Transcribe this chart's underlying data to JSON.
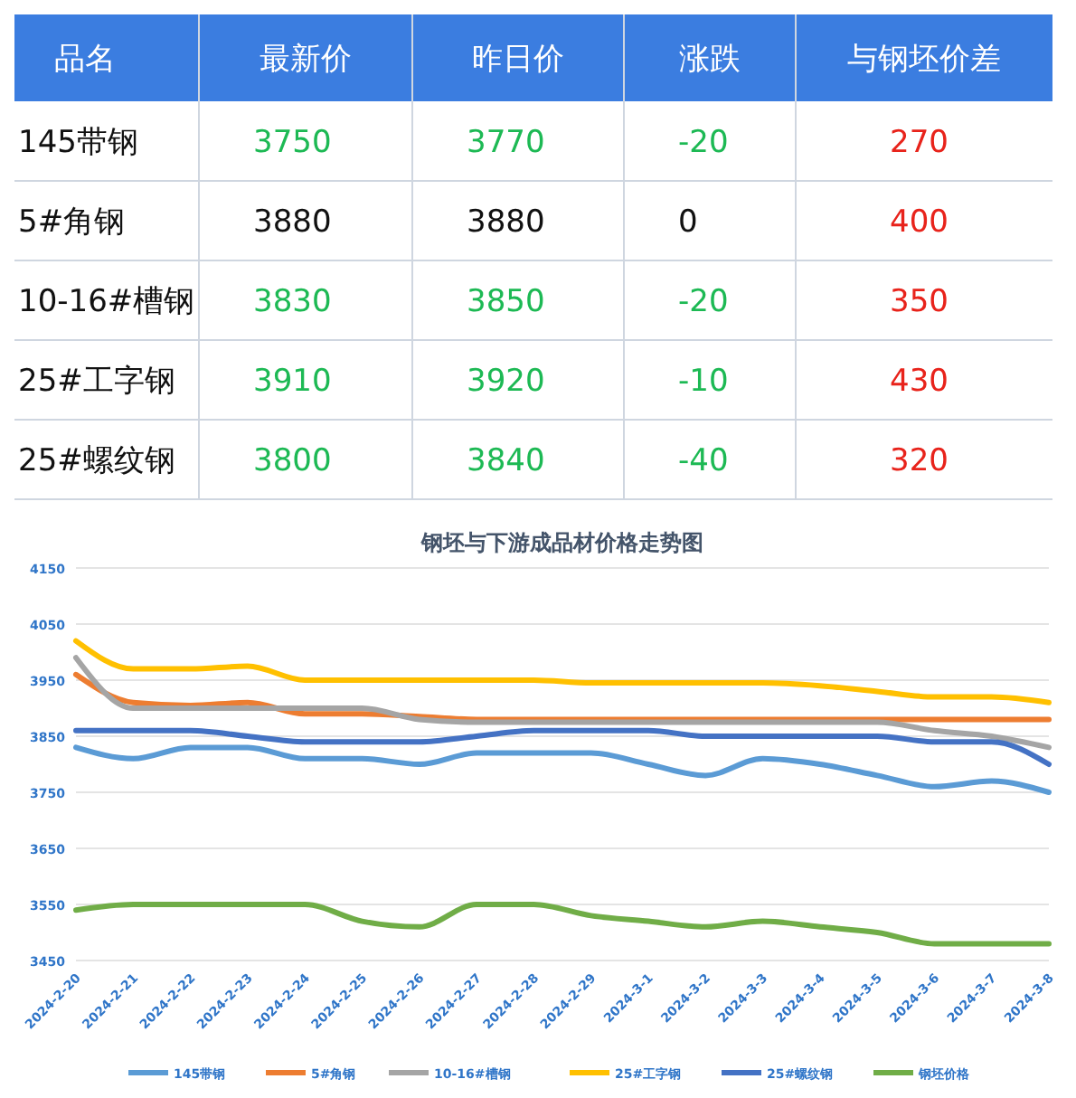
{
  "chart_data": [
    {
      "type": "other",
      "color": "#3b7de0",
      "categories": [
        "品名",
        "最新价",
        "昨日价",
        "涨跌",
        "与钢坯价差"
      ],
      "cell_labels": [
        [
          "145带钢",
          "3750",
          "3770",
          "-20",
          "270"
        ],
        [
          "5#角钢",
          "3880",
          "3880",
          "0",
          "400"
        ],
        [
          "10-16#槽钢",
          "3830",
          "3850",
          "-20",
          "350"
        ],
        [
          "25#工字钢",
          "3910",
          "3920",
          "-10",
          "430"
        ],
        [
          "25#螺纹钢",
          "3800",
          "3840",
          "-40",
          "320"
        ]
      ],
      "colors": [
        [
          "#111111",
          "#1db954",
          "#1db954",
          "#1db954",
          "#e8231b"
        ],
        [
          "#111111",
          "#111111",
          "#111111",
          "#111111",
          "#e8231b"
        ],
        [
          "#111111",
          "#1db954",
          "#1db954",
          "#1db954",
          "#e8231b"
        ],
        [
          "#111111",
          "#1db954",
          "#1db954",
          "#1db954",
          "#e8231b"
        ],
        [
          "#111111",
          "#1db954",
          "#1db954",
          "#1db954",
          "#e8231b"
        ]
      ]
    },
    {
      "type": "line",
      "title": "钢坯与下游成品材价格走势图",
      "categories": [
        "2024-2-20",
        "2024-2-21",
        "2024-2-22",
        "2024-2-23",
        "2024-2-24",
        "2024-2-25",
        "2024-2-26",
        "2024-2-27",
        "2024-2-28",
        "2024-2-29",
        "2024-3-1",
        "2024-3-2",
        "2024-3-3",
        "2024-3-4",
        "2024-3-5",
        "2024-3-6",
        "2024-3-7",
        "2024-3-8"
      ],
      "ylim": [
        3450,
        4150
      ],
      "yticks": [
        3450,
        3550,
        3650,
        3750,
        3850,
        3950,
        4050,
        4150
      ],
      "grid": "y",
      "legend": "bottom",
      "marker": "none",
      "series": [
        {
          "name": "145带钢",
          "color": "#5b9bd5",
          "values": [
            3830,
            3810,
            3830,
            3830,
            3810,
            3810,
            3800,
            3820,
            3820,
            3820,
            3800,
            3780,
            3810,
            3800,
            3780,
            3760,
            3770,
            3750
          ]
        },
        {
          "name": "5#角钢",
          "color": "#ed7d31",
          "values": [
            3960,
            3910,
            3905,
            3910,
            3890,
            3890,
            3885,
            3880,
            3880,
            3880,
            3880,
            3880,
            3880,
            3880,
            3880,
            3880,
            3880,
            3880
          ]
        },
        {
          "name": "10-16#槽钢",
          "color": "#a5a5a5",
          "values": [
            3990,
            3900,
            3900,
            3900,
            3900,
            3900,
            3880,
            3875,
            3875,
            3875,
            3875,
            3875,
            3875,
            3875,
            3875,
            3860,
            3850,
            3830
          ]
        },
        {
          "name": "25#工字钢",
          "color": "#ffc000",
          "values": [
            4020,
            3970,
            3970,
            3975,
            3950,
            3950,
            3950,
            3950,
            3950,
            3945,
            3945,
            3945,
            3945,
            3940,
            3930,
            3920,
            3920,
            3910
          ]
        },
        {
          "name": "25#螺纹钢",
          "color": "#4472c4",
          "values": [
            3860,
            3860,
            3860,
            3850,
            3840,
            3840,
            3840,
            3850,
            3860,
            3860,
            3860,
            3850,
            3850,
            3850,
            3850,
            3840,
            3840,
            3800
          ]
        },
        {
          "name": "钢坯价格",
          "color": "#70ad47",
          "values": [
            3540,
            3550,
            3550,
            3550,
            3550,
            3520,
            3510,
            3550,
            3550,
            3530,
            3520,
            3510,
            3520,
            3510,
            3500,
            3480,
            3480,
            3480
          ]
        }
      ]
    }
  ]
}
